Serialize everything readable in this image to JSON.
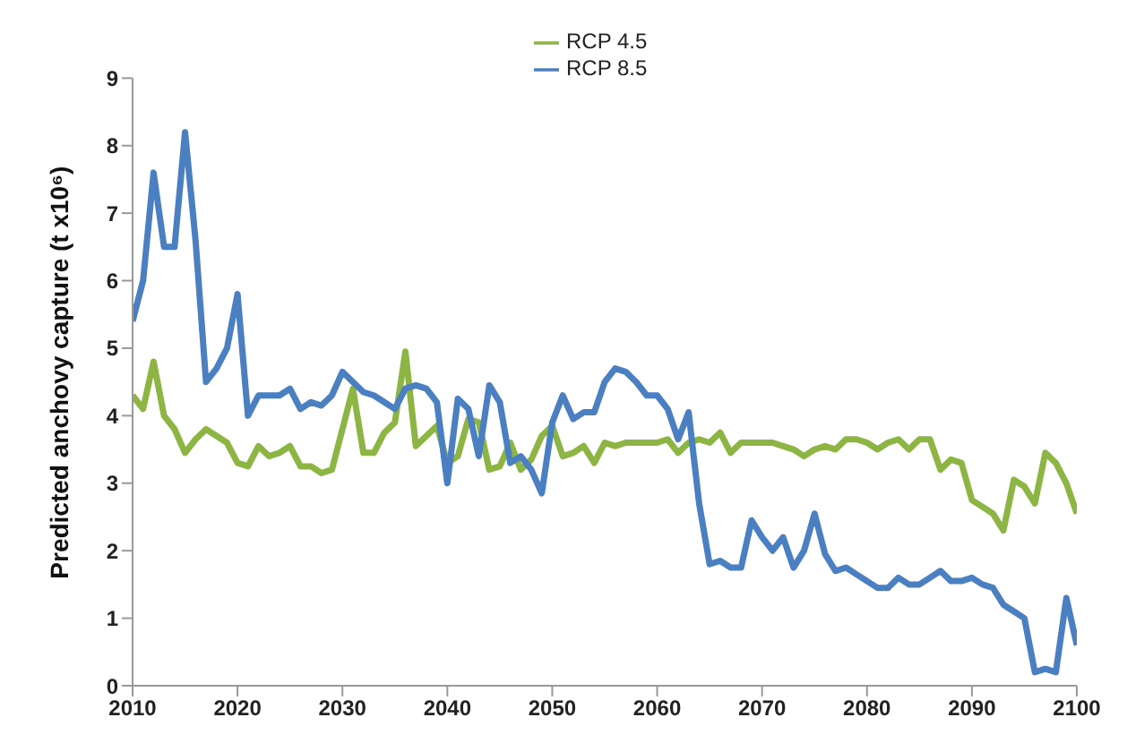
{
  "chart_data": {
    "type": "line",
    "ylabel": "Predicted anchovy capture (t x10⁶)",
    "x": [
      2010,
      2011,
      2012,
      2013,
      2014,
      2015,
      2016,
      2017,
      2018,
      2019,
      2020,
      2021,
      2022,
      2023,
      2024,
      2025,
      2026,
      2027,
      2028,
      2029,
      2030,
      2031,
      2032,
      2033,
      2034,
      2035,
      2036,
      2037,
      2038,
      2039,
      2040,
      2041,
      2042,
      2043,
      2044,
      2045,
      2046,
      2047,
      2048,
      2049,
      2050,
      2051,
      2052,
      2053,
      2054,
      2055,
      2056,
      2057,
      2058,
      2059,
      2060,
      2061,
      2062,
      2063,
      2064,
      2065,
      2066,
      2067,
      2068,
      2069,
      2070,
      2071,
      2072,
      2073,
      2074,
      2075,
      2076,
      2077,
      2078,
      2079,
      2080,
      2081,
      2082,
      2083,
      2084,
      2085,
      2086,
      2087,
      2088,
      2089,
      2090,
      2091,
      2092,
      2093,
      2094,
      2095,
      2096,
      2097,
      2098,
      2099,
      2100
    ],
    "series": [
      {
        "name": "RCP 4.5",
        "color": "#8db543",
        "values": [
          4.3,
          4.1,
          4.8,
          4.0,
          3.8,
          3.45,
          3.65,
          3.8,
          3.7,
          3.6,
          3.3,
          3.25,
          3.55,
          3.4,
          3.45,
          3.55,
          3.25,
          3.25,
          3.15,
          3.2,
          3.8,
          4.4,
          3.45,
          3.45,
          3.75,
          3.9,
          4.95,
          3.55,
          3.7,
          3.85,
          3.3,
          3.4,
          3.95,
          3.9,
          3.2,
          3.25,
          3.6,
          3.2,
          3.35,
          3.7,
          3.85,
          3.4,
          3.45,
          3.55,
          3.3,
          3.6,
          3.55,
          3.6,
          3.6,
          3.6,
          3.6,
          3.65,
          3.45,
          3.6,
          3.65,
          3.6,
          3.75,
          3.45,
          3.6,
          3.6,
          3.6,
          3.6,
          3.55,
          3.5,
          3.4,
          3.5,
          3.55,
          3.5,
          3.65,
          3.65,
          3.6,
          3.5,
          3.6,
          3.65,
          3.5,
          3.65,
          3.65,
          3.2,
          3.35,
          3.3,
          2.75,
          2.65,
          2.55,
          2.3,
          3.05,
          2.95,
          2.7,
          3.45,
          3.3,
          3.0,
          2.55
        ]
      },
      {
        "name": "RCP 8.5",
        "color": "#4a7fc1",
        "values": [
          5.4,
          6.0,
          7.6,
          6.5,
          6.5,
          8.2,
          6.6,
          4.5,
          4.7,
          5.0,
          5.8,
          4.0,
          4.3,
          4.3,
          4.3,
          4.4,
          4.1,
          4.2,
          4.15,
          4.3,
          4.65,
          4.5,
          4.35,
          4.3,
          4.2,
          4.1,
          4.4,
          4.45,
          4.4,
          4.2,
          3.0,
          4.25,
          4.1,
          3.4,
          4.45,
          4.2,
          3.3,
          3.4,
          3.2,
          2.85,
          3.9,
          4.3,
          3.95,
          4.05,
          4.05,
          4.5,
          4.7,
          4.65,
          4.5,
          4.3,
          4.3,
          4.1,
          3.65,
          4.05,
          2.7,
          1.8,
          1.85,
          1.75,
          1.75,
          2.45,
          2.2,
          2.0,
          2.2,
          1.75,
          2.0,
          2.55,
          1.95,
          1.7,
          1.75,
          1.65,
          1.55,
          1.45,
          1.45,
          1.6,
          1.5,
          1.5,
          1.6,
          1.7,
          1.55,
          1.55,
          1.6,
          1.5,
          1.45,
          1.2,
          1.1,
          1.0,
          0.2,
          0.25,
          0.2,
          1.3,
          0.6
        ]
      }
    ],
    "xlim": [
      2010,
      2100
    ],
    "xticks": [
      2010,
      2020,
      2030,
      2040,
      2050,
      2060,
      2070,
      2080,
      2090,
      2100
    ],
    "ylim": [
      0,
      9
    ],
    "yticks": [
      0,
      1,
      2,
      3,
      4,
      5,
      6,
      7,
      8,
      9
    ],
    "grid": false,
    "legend": "top",
    "marker": "none",
    "line_style": "solid"
  }
}
